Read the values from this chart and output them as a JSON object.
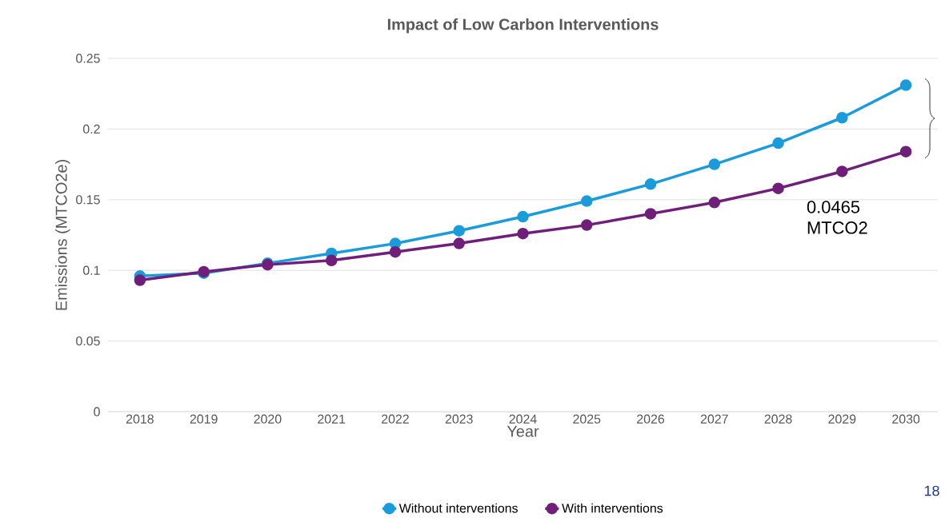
{
  "chart_data": {
    "type": "line",
    "title": "Impact of Low Carbon Interventions",
    "xlabel": "Year",
    "ylabel": "Emissions (MTCO2e)",
    "categories": [
      "2018",
      "2019",
      "2020",
      "2021",
      "2022",
      "2023",
      "2024",
      "2025",
      "2026",
      "2027",
      "2028",
      "2029",
      "2030"
    ],
    "series": [
      {
        "name": "Without interventions",
        "color": "#1a9bdb",
        "values": [
          0.096,
          0.098,
          0.105,
          0.112,
          0.119,
          0.128,
          0.138,
          0.149,
          0.161,
          0.175,
          0.19,
          0.208,
          0.231
        ]
      },
      {
        "name": "With interventions",
        "color": "#6f1f7a",
        "values": [
          0.093,
          0.099,
          0.104,
          0.107,
          0.113,
          0.119,
          0.126,
          0.132,
          0.14,
          0.148,
          0.158,
          0.17,
          0.184
        ]
      }
    ],
    "ylim": [
      0,
      0.25
    ],
    "yticks": [
      0,
      0.05,
      0.1,
      0.15,
      0.2,
      0.25
    ],
    "grid": "y",
    "legend": "bottom",
    "marker": "circle",
    "line_style": "solid",
    "annotations": [
      "0.0465 MTCO2",
      "18"
    ]
  }
}
